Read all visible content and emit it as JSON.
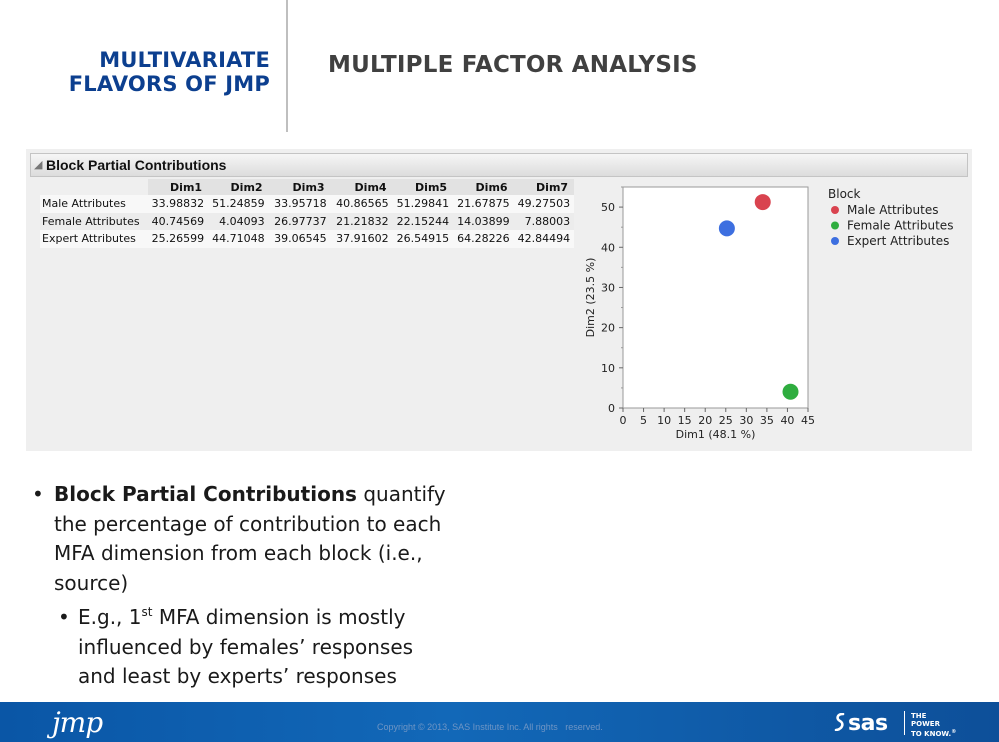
{
  "header": {
    "brand_line1": "MULTIVARIATE",
    "brand_line2": "FLAVORS OF JMP",
    "title": "MULTIPLE FACTOR ANALYSIS"
  },
  "report": {
    "outline_title": "Block Partial Contributions",
    "columns": [
      "Dim1",
      "Dim2",
      "Dim3",
      "Dim4",
      "Dim5",
      "Dim6",
      "Dim7"
    ],
    "rows": [
      {
        "label": "Male Attributes",
        "values": [
          "33.98832",
          "51.24859",
          "33.95718",
          "40.86565",
          "51.29841",
          "21.67875",
          "49.27503"
        ]
      },
      {
        "label": "Female Attributes",
        "values": [
          "40.74569",
          "4.04093",
          "26.97737",
          "21.21832",
          "22.15244",
          "14.03899",
          "7.88003"
        ]
      },
      {
        "label": "Expert Attributes",
        "values": [
          "25.26599",
          "44.71048",
          "39.06545",
          "37.91602",
          "26.54915",
          "64.28226",
          "42.84494"
        ]
      }
    ]
  },
  "chart_data": {
    "type": "scatter",
    "xlabel": "Dim1  (48.1 %)",
    "ylabel": "Dim2  (23.5 %)",
    "xlim": [
      0,
      45
    ],
    "ylim": [
      0,
      55
    ],
    "x_ticks": [
      0,
      5,
      10,
      15,
      20,
      25,
      30,
      35,
      40,
      45
    ],
    "y_ticks": [
      0,
      10,
      20,
      30,
      40,
      50
    ],
    "grid": false,
    "legend_title": "Block",
    "legend_position": "right",
    "series": [
      {
        "name": "Male Attributes",
        "color": "#d9434f",
        "x": 33.98832,
        "y": 51.24859
      },
      {
        "name": "Female Attributes",
        "color": "#2fad3f",
        "x": 40.74569,
        "y": 4.04093
      },
      {
        "name": "Expert Attributes",
        "color": "#3d6fe0",
        "x": 25.26599,
        "y": 44.71048
      }
    ]
  },
  "bullets": {
    "b1_bold": "Block Partial Contributions",
    "b1_rest": " quantify the percentage of contribution to each MFA dimension from each block (i.e., source)",
    "b2_pre": "E.g., 1",
    "b2_sup": "st",
    "b2_post": " MFA dimension is mostly influenced by females’ responses and least by experts’ responses"
  },
  "footer": {
    "jmp_logo": "jmp",
    "copyright": "Copyright © 2013, SAS Institute Inc. All rights   reserved.",
    "sas_logo": "sas",
    "tagline": [
      "THE",
      "POWER",
      "TO KNOW."
    ],
    "tagline_mark": "®"
  }
}
